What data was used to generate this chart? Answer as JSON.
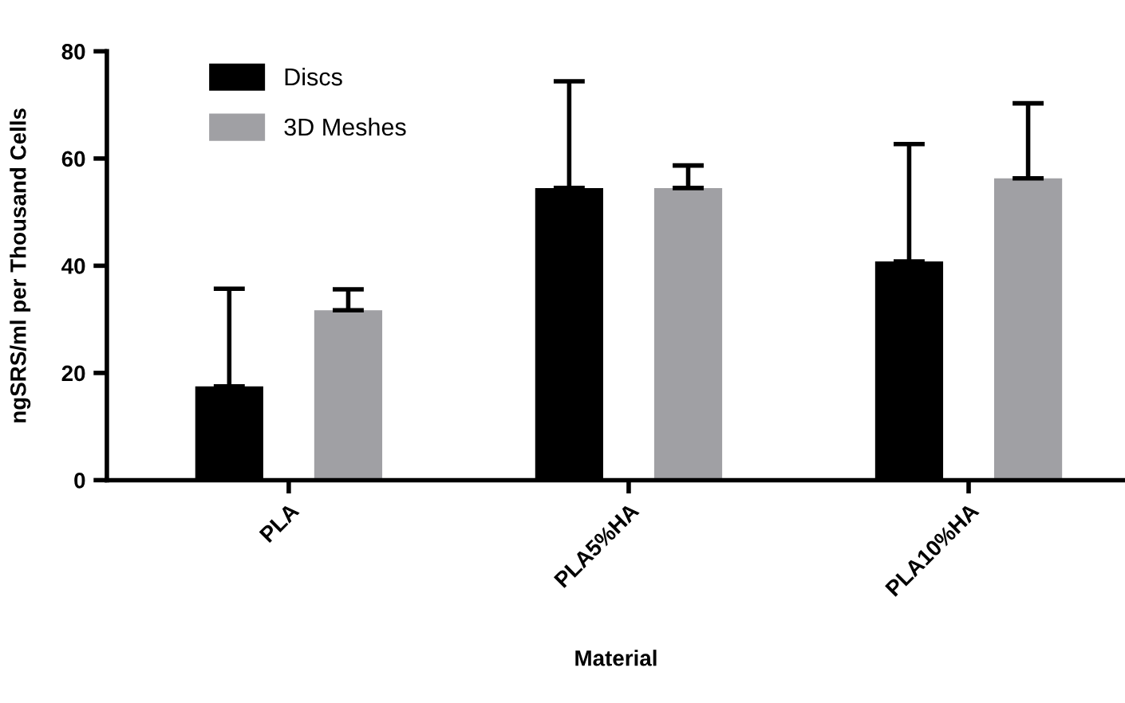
{
  "chart_data": {
    "type": "bar",
    "xlabel": "Material",
    "ylabel": "ngSRS/ml per Thousand Cells",
    "categories": [
      "PLA",
      "PLA5%HA",
      "PLA10%HA"
    ],
    "series": [
      {
        "name": "Discs",
        "color": "#000000",
        "values": [
          17.5,
          54.5,
          40.8
        ],
        "errors": [
          [
            17.5,
            35.7
          ],
          [
            54.5,
            74.4
          ],
          [
            40.8,
            62.7
          ]
        ]
      },
      {
        "name": "3D Meshes",
        "color": "#a0a0a4",
        "values": [
          31.7,
          54.5,
          56.3
        ],
        "errors": [
          [
            31.7,
            35.6
          ],
          [
            54.5,
            58.7
          ],
          [
            56.3,
            70.3
          ]
        ]
      }
    ],
    "ylim": [
      0,
      80
    ],
    "yticks": [
      0,
      20,
      40,
      60,
      80
    ],
    "grid": false,
    "legend": "top left"
  }
}
